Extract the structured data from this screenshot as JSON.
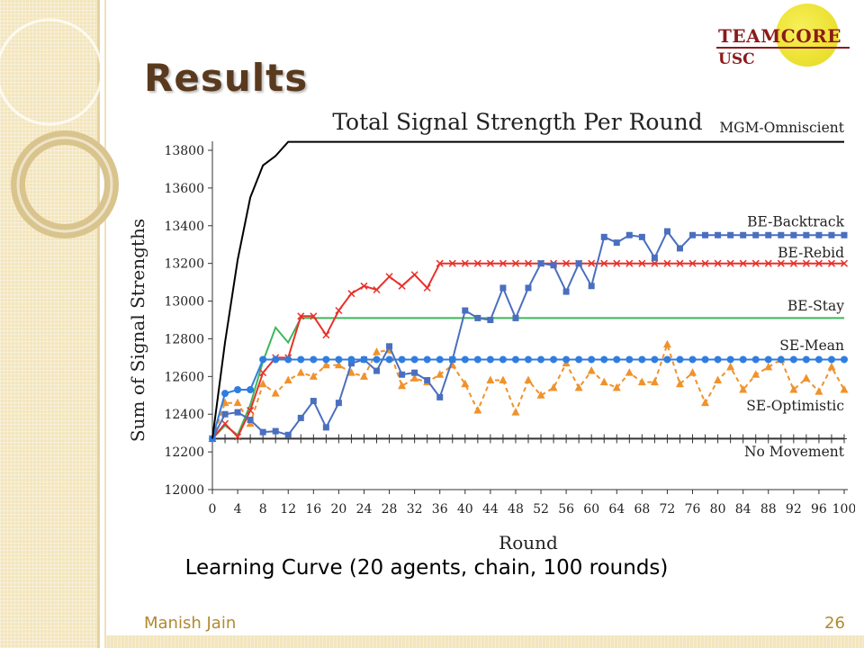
{
  "slide": {
    "title": "Results",
    "caption": "Learning Curve (20 agents, chain, 100 rounds)",
    "author": "Manish Jain",
    "page_number": "26",
    "logo": {
      "text": "TEAMCORE",
      "sub": "USC"
    }
  },
  "chart_data": {
    "type": "line",
    "title": "Total Signal Strength Per Round",
    "xlabel": "Round",
    "ylabel": "Sum of Signal Strengths",
    "xlim": [
      0,
      100
    ],
    "ylim": [
      12000,
      13800
    ],
    "xticks": [
      0,
      4,
      8,
      12,
      16,
      20,
      24,
      28,
      32,
      36,
      40,
      44,
      48,
      52,
      56,
      60,
      64,
      68,
      72,
      76,
      80,
      84,
      88,
      92,
      96,
      100
    ],
    "yticks": [
      12000,
      12200,
      12400,
      12600,
      12800,
      13000,
      13200,
      13400,
      13600,
      13800
    ],
    "grid": false,
    "legend": "inline labels at right end of each line",
    "series": [
      {
        "name": "MGM-Omniscient",
        "color": "#000000",
        "marker": "none",
        "dashed": false,
        "x": [
          0,
          2,
          4,
          6,
          8,
          10,
          12,
          14,
          100
        ],
        "y": [
          12270,
          12780,
          13220,
          13550,
          13720,
          13770,
          13845,
          13845,
          13845
        ]
      },
      {
        "name": "BE-Backtrack",
        "color": "#4a6fbf",
        "marker": "square",
        "dashed": false,
        "x": [
          0,
          2,
          4,
          6,
          8,
          10,
          12,
          14,
          16,
          18,
          20,
          22,
          24,
          26,
          28,
          30,
          32,
          34,
          36,
          38,
          40,
          42,
          44,
          46,
          48,
          50,
          52,
          54,
          56,
          58,
          60,
          62,
          64,
          66,
          68,
          70,
          72,
          74,
          76,
          78,
          80,
          82,
          84,
          86,
          88,
          90,
          92,
          94,
          96,
          98,
          100
        ],
        "y": [
          12270,
          12400,
          12410,
          12370,
          12305,
          12310,
          12290,
          12380,
          12470,
          12330,
          12460,
          12670,
          12690,
          12630,
          12760,
          12610,
          12620,
          12580,
          12490,
          12690,
          12950,
          12910,
          12900,
          13070,
          12910,
          13070,
          13200,
          13190,
          13050,
          13200,
          13080,
          13340,
          13310,
          13350,
          13340,
          13230,
          13370,
          13280,
          13350,
          13350,
          13350,
          13350,
          13350,
          13350,
          13350,
          13350,
          13350,
          13350,
          13350,
          13350,
          13350
        ]
      },
      {
        "name": "BE-Rebid",
        "color": "#e8312a",
        "marker": "x",
        "dashed": false,
        "x": [
          0,
          2,
          4,
          6,
          8,
          10,
          12,
          14,
          16,
          18,
          20,
          22,
          24,
          26,
          28,
          30,
          32,
          34,
          36,
          38,
          40,
          42,
          44,
          46,
          48,
          50,
          52,
          54,
          56,
          58,
          60,
          62,
          64,
          66,
          68,
          70,
          72,
          74,
          76,
          78,
          80,
          82,
          84,
          86,
          88,
          90,
          92,
          94,
          96,
          98,
          100
        ],
        "y": [
          12270,
          12350,
          12280,
          12420,
          12620,
          12700,
          12700,
          12920,
          12920,
          12820,
          12950,
          13040,
          13080,
          13060,
          13130,
          13080,
          13140,
          13070,
          13200,
          13200,
          13200,
          13200,
          13200,
          13200,
          13200,
          13200,
          13200,
          13200,
          13200,
          13200,
          13200,
          13200,
          13200,
          13200,
          13200,
          13200,
          13200,
          13200,
          13200,
          13200,
          13200,
          13200,
          13200,
          13200,
          13200,
          13200,
          13200,
          13200,
          13200,
          13200,
          13200
        ]
      },
      {
        "name": "BE-Stay",
        "color": "#3cb85a",
        "marker": "none",
        "dashed": false,
        "x": [
          0,
          2,
          4,
          6,
          8,
          10,
          12,
          14,
          16,
          100
        ],
        "y": [
          12270,
          12340,
          12290,
          12450,
          12680,
          12860,
          12780,
          12910,
          12910,
          12910
        ]
      },
      {
        "name": "SE-Mean",
        "color": "#2f7de0",
        "marker": "circle",
        "dashed": false,
        "x": [
          0,
          2,
          4,
          6,
          8,
          10,
          12,
          14,
          16,
          18,
          20,
          22,
          24,
          26,
          28,
          30,
          32,
          34,
          36,
          38,
          40,
          42,
          44,
          46,
          48,
          50,
          52,
          54,
          56,
          58,
          60,
          62,
          64,
          66,
          68,
          70,
          72,
          74,
          76,
          78,
          80,
          82,
          84,
          86,
          88,
          90,
          92,
          94,
          96,
          98,
          100
        ],
        "y": [
          12270,
          12510,
          12530,
          12530,
          12690,
          12690,
          12690,
          12690,
          12690,
          12690,
          12690,
          12690,
          12690,
          12690,
          12690,
          12690,
          12690,
          12690,
          12690,
          12690,
          12690,
          12690,
          12690,
          12690,
          12690,
          12690,
          12690,
          12690,
          12690,
          12690,
          12690,
          12690,
          12690,
          12690,
          12690,
          12690,
          12690,
          12690,
          12690,
          12690,
          12690,
          12690,
          12690,
          12690,
          12690,
          12690,
          12690,
          12690,
          12690,
          12690,
          12690
        ]
      },
      {
        "name": "SE-Optimistic",
        "color": "#f0922b",
        "marker": "triangle",
        "dashed": true,
        "x": [
          0,
          2,
          4,
          6,
          8,
          10,
          12,
          14,
          16,
          18,
          20,
          22,
          24,
          26,
          28,
          30,
          32,
          34,
          36,
          38,
          40,
          42,
          44,
          46,
          48,
          50,
          52,
          54,
          56,
          58,
          60,
          62,
          64,
          66,
          68,
          70,
          72,
          74,
          76,
          78,
          80,
          82,
          84,
          86,
          88,
          90,
          92,
          94,
          96,
          98,
          100
        ],
        "y": [
          12270,
          12460,
          12460,
          12350,
          12560,
          12510,
          12580,
          12620,
          12600,
          12660,
          12660,
          12620,
          12600,
          12730,
          12740,
          12550,
          12590,
          12570,
          12610,
          12660,
          12560,
          12420,
          12580,
          12580,
          12410,
          12580,
          12500,
          12540,
          12670,
          12540,
          12630,
          12570,
          12540,
          12620,
          12570,
          12570,
          12770,
          12560,
          12620,
          12460,
          12580,
          12650,
          12530,
          12610,
          12650,
          12690,
          12530,
          12590,
          12520,
          12650,
          12530
        ]
      },
      {
        "name": "No Movement",
        "color": "#333333",
        "marker": "plus",
        "dashed": false,
        "x": [
          0,
          2,
          4,
          6,
          8,
          10,
          12,
          14,
          16,
          18,
          20,
          22,
          24,
          26,
          28,
          30,
          32,
          34,
          36,
          38,
          40,
          42,
          44,
          46,
          48,
          50,
          52,
          54,
          56,
          58,
          60,
          62,
          64,
          66,
          68,
          70,
          72,
          74,
          76,
          78,
          80,
          82,
          84,
          86,
          88,
          90,
          92,
          94,
          96,
          98,
          100
        ],
        "y": [
          12270,
          12270,
          12270,
          12270,
          12270,
          12270,
          12270,
          12270,
          12270,
          12270,
          12270,
          12270,
          12270,
          12270,
          12270,
          12270,
          12270,
          12270,
          12270,
          12270,
          12270,
          12270,
          12270,
          12270,
          12270,
          12270,
          12270,
          12270,
          12270,
          12270,
          12270,
          12270,
          12270,
          12270,
          12270,
          12270,
          12270,
          12270,
          12270,
          12270,
          12270,
          12270,
          12270,
          12270,
          12270,
          12270,
          12270,
          12270,
          12270,
          12270,
          12270
        ]
      }
    ]
  }
}
